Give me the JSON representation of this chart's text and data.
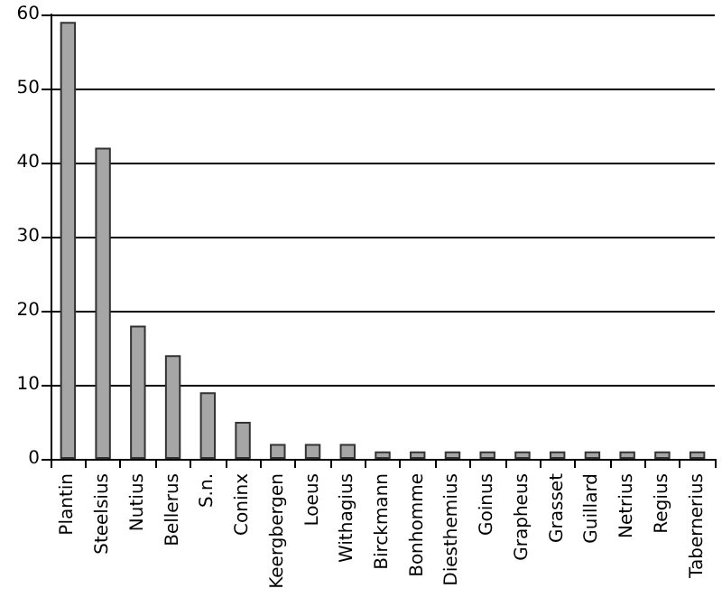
{
  "chart_data": {
    "type": "bar",
    "categories": [
      "Plantin",
      "Steelsius",
      "Nutius",
      "Bellerus",
      "S.n.",
      "Coninx",
      "Keergbergen",
      "Loeus",
      "Withagius",
      "Birckmann",
      "Bonhomme",
      "Diesthemius",
      "Goinus",
      "Grapheus",
      "Grasset",
      "Guillard",
      "Netrius",
      "Regius",
      "Tabernerius"
    ],
    "values": [
      59,
      42,
      18,
      14,
      9,
      5,
      2,
      2,
      2,
      1,
      1,
      1,
      1,
      1,
      1,
      1,
      1,
      1,
      1
    ],
    "color": "#a6a6a6",
    "ylim": [
      0,
      60
    ],
    "yticks": [
      0,
      10,
      20,
      30,
      40,
      50,
      60
    ],
    "grid": "y"
  }
}
